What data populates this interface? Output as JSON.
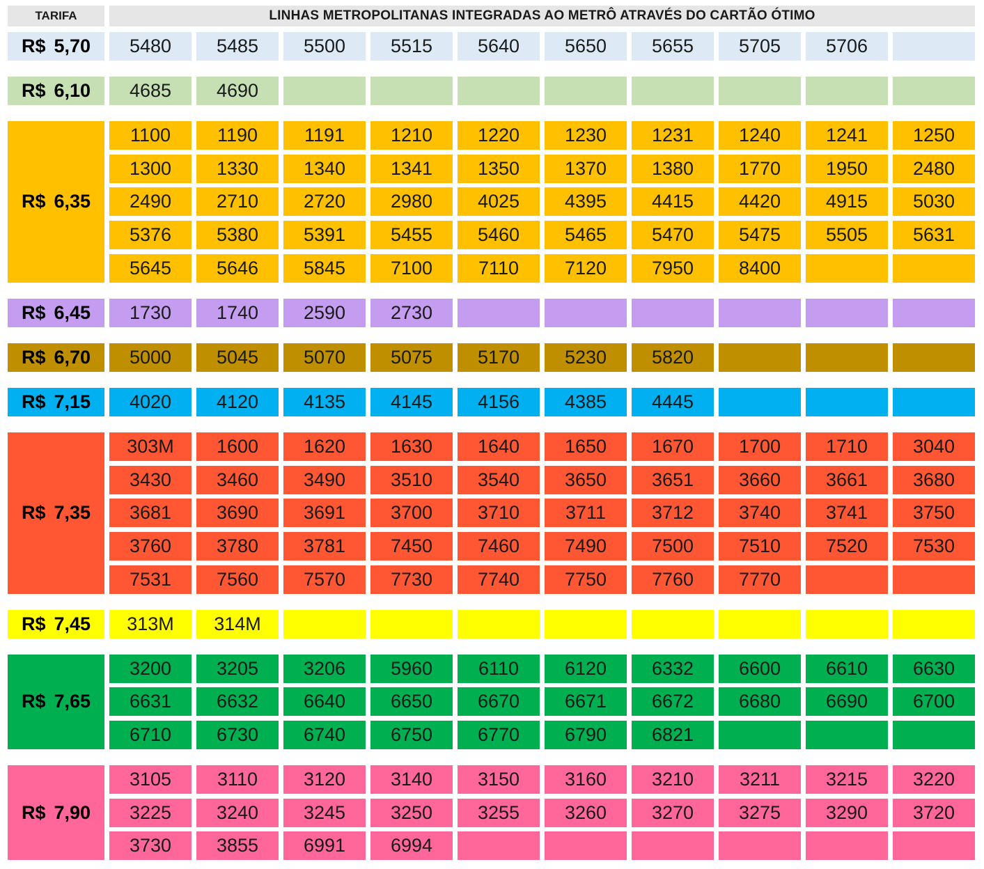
{
  "header": {
    "tarifa_label": "TARIFA",
    "title": "LINHAS METROPOLITANAS INTEGRADAS AO METRÔ ATRAVÉS DO CARTÃO ÓTIMO"
  },
  "currency_symbol": "R$",
  "groups": [
    {
      "fare": "5,70",
      "color": "#ddeaf6",
      "lines": [
        "5480",
        "5485",
        "5500",
        "5515",
        "5640",
        "5650",
        "5655",
        "5705",
        "5706"
      ]
    },
    {
      "fare": "6,10",
      "color": "#c6e0b4",
      "lines": [
        "4685",
        "4690"
      ]
    },
    {
      "fare": "6,35",
      "color": "#ffc000",
      "lines": [
        "1100",
        "1190",
        "1191",
        "1210",
        "1220",
        "1230",
        "1231",
        "1240",
        "1241",
        "1250",
        "1300",
        "1330",
        "1340",
        "1341",
        "1350",
        "1370",
        "1380",
        "1770",
        "1950",
        "2480",
        "2490",
        "2710",
        "2720",
        "2980",
        "4025",
        "4395",
        "4415",
        "4420",
        "4915",
        "5030",
        "5376",
        "5380",
        "5391",
        "5455",
        "5460",
        "5465",
        "5470",
        "5475",
        "5505",
        "5631",
        "5645",
        "5646",
        "5845",
        "7100",
        "7110",
        "7120",
        "7950",
        "8400"
      ]
    },
    {
      "fare": "6,45",
      "color": "#c49cf0",
      "lines": [
        "1730",
        "1740",
        "2590",
        "2730"
      ]
    },
    {
      "fare": "6,70",
      "color": "#bf8f00",
      "lines": [
        "5000",
        "5045",
        "5070",
        "5075",
        "5170",
        "5230",
        "5820"
      ]
    },
    {
      "fare": "7,15",
      "color": "#00b0f0",
      "lines": [
        "4020",
        "4120",
        "4135",
        "4145",
        "4156",
        "4385",
        "4445"
      ]
    },
    {
      "fare": "7,35",
      "color": "#ff5733",
      "lines": [
        "303M",
        "1600",
        "1620",
        "1630",
        "1640",
        "1650",
        "1670",
        "1700",
        "1710",
        "3040",
        "3430",
        "3460",
        "3490",
        "3510",
        "3540",
        "3650",
        "3651",
        "3660",
        "3661",
        "3680",
        "3681",
        "3690",
        "3691",
        "3700",
        "3710",
        "3711",
        "3712",
        "3740",
        "3741",
        "3750",
        "3760",
        "3780",
        "3781",
        "7450",
        "7460",
        "7490",
        "7500",
        "7510",
        "7520",
        "7530",
        "7531",
        "7560",
        "7570",
        "7730",
        "7740",
        "7750",
        "7760",
        "7770"
      ]
    },
    {
      "fare": "7,45",
      "color": "#ffff00",
      "lines": [
        "313M",
        "314M"
      ]
    },
    {
      "fare": "7,65",
      "color": "#00b050",
      "lines": [
        "3200",
        "3205",
        "3206",
        "5960",
        "6110",
        "6120",
        "6332",
        "6600",
        "6610",
        "6630",
        "6631",
        "6632",
        "6640",
        "6650",
        "6670",
        "6671",
        "6672",
        "6680",
        "6690",
        "6700",
        "6710",
        "6730",
        "6740",
        "6750",
        "6770",
        "6790",
        "6821"
      ]
    },
    {
      "fare": "7,90",
      "color": "#ff6699",
      "lines": [
        "3105",
        "3110",
        "3120",
        "3140",
        "3150",
        "3160",
        "3210",
        "3211",
        "3215",
        "3220",
        "3225",
        "3240",
        "3245",
        "3250",
        "3255",
        "3260",
        "3270",
        "3275",
        "3290",
        "3720",
        "3730",
        "3855",
        "6991",
        "6994"
      ]
    }
  ]
}
